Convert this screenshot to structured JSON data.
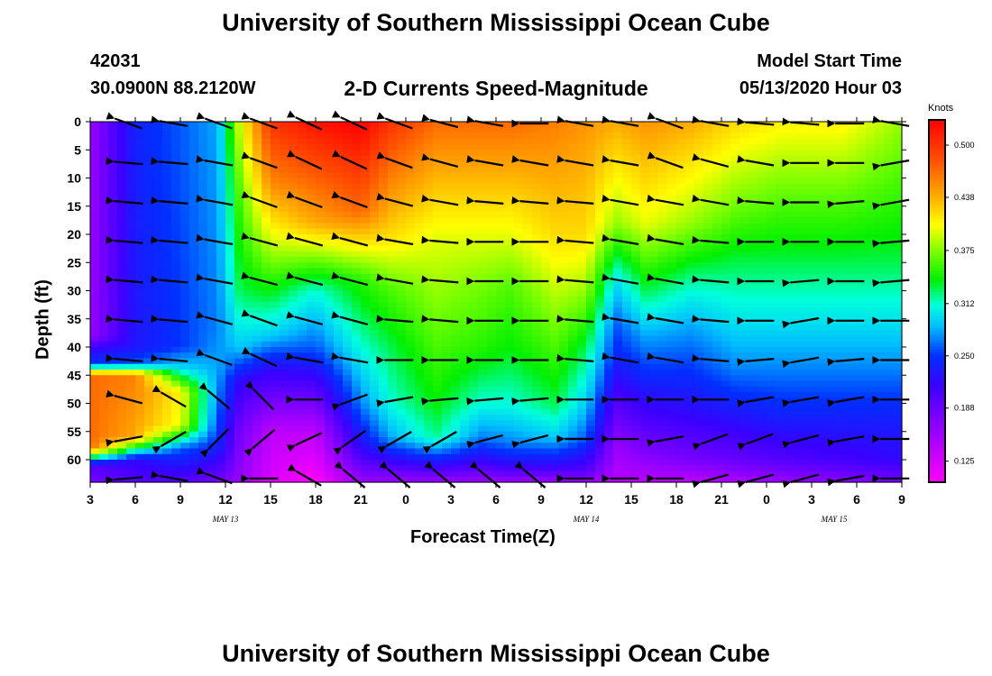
{
  "header": {
    "title_top": "University of Southern Mississippi Ocean Cube",
    "station_id": "42031",
    "station_coords": "30.0900N 88.2120W",
    "chart_title": "2-D Currents Speed-Magnitude",
    "model_start_label": "Model Start Time",
    "model_start_value": "05/13/2020 Hour 03",
    "title_bottom": "University of Southern Mississippi Ocean Cube"
  },
  "chart_data": {
    "type": "heatmap",
    "xlabel": "Forecast Time(Z)",
    "ylabel": "Depth (ft)",
    "x_ticks": [
      "3",
      "6",
      "9",
      "12",
      "15",
      "18",
      "21",
      "0",
      "3",
      "6",
      "9",
      "12",
      "15",
      "18",
      "21",
      "0",
      "3",
      "6",
      "9"
    ],
    "date_labels": [
      {
        "label": "MAY 13",
        "at_tick": 3
      },
      {
        "label": "MAY 14",
        "at_tick": 11
      },
      {
        "label": "MAY 15",
        "at_tick": 16.5
      }
    ],
    "y_ticks": [
      0,
      5,
      10,
      15,
      20,
      25,
      30,
      35,
      40,
      45,
      50,
      55,
      60
    ],
    "ylim": [
      0,
      64
    ],
    "x_range_hours": [
      0,
      54
    ],
    "colorbar": {
      "unit": "Knots",
      "ticks": [
        "0.500",
        "0.438",
        "0.375",
        "0.312",
        "0.250",
        "0.188",
        "0.125"
      ],
      "range": [
        0.1,
        0.53
      ],
      "stops": [
        {
          "v": 0.1,
          "c": "#ff00ff"
        },
        {
          "v": 0.16,
          "c": "#9900ff"
        },
        {
          "v": 0.215,
          "c": "#3a00ff"
        },
        {
          "v": 0.25,
          "c": "#0030ff"
        },
        {
          "v": 0.285,
          "c": "#00bfff"
        },
        {
          "v": 0.31,
          "c": "#00ffdd"
        },
        {
          "v": 0.34,
          "c": "#00f000"
        },
        {
          "v": 0.375,
          "c": "#80ff00"
        },
        {
          "v": 0.405,
          "c": "#ffff00"
        },
        {
          "v": 0.44,
          "c": "#ffaa00"
        },
        {
          "v": 0.48,
          "c": "#ff5500"
        },
        {
          "v": 0.53,
          "c": "#ff0000"
        }
      ]
    },
    "speed_profiles": [
      {
        "t": 0,
        "p": [
          [
            0,
            0.16
          ],
          [
            38,
            0.16
          ],
          [
            40,
            0.21
          ],
          [
            43,
            0.25
          ],
          [
            45,
            0.47
          ],
          [
            58,
            0.47
          ],
          [
            61,
            0.2
          ],
          [
            64,
            0.18
          ]
        ]
      },
      {
        "t": 3,
        "p": [
          [
            0,
            0.24
          ],
          [
            40,
            0.23
          ],
          [
            43,
            0.26
          ],
          [
            45,
            0.46
          ],
          [
            56,
            0.44
          ],
          [
            60,
            0.22
          ],
          [
            64,
            0.2
          ]
        ]
      },
      {
        "t": 6,
        "p": [
          [
            0,
            0.26
          ],
          [
            40,
            0.25
          ],
          [
            44,
            0.3
          ],
          [
            48,
            0.41
          ],
          [
            54,
            0.4
          ],
          [
            58,
            0.26
          ],
          [
            64,
            0.2
          ]
        ]
      },
      {
        "t": 8.5,
        "p": [
          [
            0,
            0.28
          ],
          [
            36,
            0.27
          ],
          [
            44,
            0.28
          ],
          [
            52,
            0.26
          ],
          [
            58,
            0.24
          ],
          [
            64,
            0.18
          ]
        ]
      },
      {
        "t": 10,
        "p": [
          [
            0,
            0.4
          ],
          [
            15,
            0.36
          ],
          [
            30,
            0.33
          ],
          [
            40,
            0.29
          ],
          [
            46,
            0.22
          ],
          [
            55,
            0.18
          ],
          [
            64,
            0.16
          ]
        ]
      },
      {
        "t": 12,
        "p": [
          [
            0,
            0.5
          ],
          [
            10,
            0.46
          ],
          [
            15,
            0.43
          ],
          [
            22,
            0.39
          ],
          [
            30,
            0.34
          ],
          [
            38,
            0.29
          ],
          [
            44,
            0.22
          ],
          [
            55,
            0.14
          ],
          [
            64,
            0.12
          ]
        ]
      },
      {
        "t": 15,
        "p": [
          [
            0,
            0.52
          ],
          [
            18,
            0.44
          ],
          [
            30,
            0.31
          ],
          [
            40,
            0.26
          ],
          [
            46,
            0.21
          ],
          [
            55,
            0.14
          ],
          [
            64,
            0.1
          ]
        ]
      },
      {
        "t": 18,
        "p": [
          [
            0,
            0.53
          ],
          [
            16,
            0.47
          ],
          [
            28,
            0.35
          ],
          [
            40,
            0.31
          ],
          [
            50,
            0.27
          ],
          [
            58,
            0.22
          ],
          [
            64,
            0.16
          ]
        ]
      },
      {
        "t": 20,
        "p": [
          [
            0,
            0.5
          ],
          [
            20,
            0.42
          ],
          [
            30,
            0.36
          ],
          [
            40,
            0.33
          ],
          [
            50,
            0.31
          ],
          [
            56,
            0.28
          ],
          [
            60,
            0.22
          ],
          [
            64,
            0.16
          ]
        ]
      },
      {
        "t": 23,
        "p": [
          [
            0,
            0.47
          ],
          [
            20,
            0.4
          ],
          [
            30,
            0.38
          ],
          [
            40,
            0.36
          ],
          [
            50,
            0.34
          ],
          [
            56,
            0.32
          ],
          [
            60,
            0.24
          ],
          [
            64,
            0.16
          ]
        ]
      },
      {
        "t": 26,
        "p": [
          [
            0,
            0.47
          ],
          [
            20,
            0.4
          ],
          [
            30,
            0.37
          ],
          [
            40,
            0.35
          ],
          [
            50,
            0.31
          ],
          [
            56,
            0.27
          ],
          [
            60,
            0.22
          ],
          [
            64,
            0.16
          ]
        ]
      },
      {
        "t": 28,
        "p": [
          [
            0,
            0.47
          ],
          [
            20,
            0.4
          ],
          [
            30,
            0.36
          ],
          [
            40,
            0.34
          ],
          [
            50,
            0.31
          ],
          [
            57,
            0.27
          ],
          [
            61,
            0.22
          ],
          [
            64,
            0.16
          ]
        ]
      },
      {
        "t": 31,
        "p": [
          [
            0,
            0.46
          ],
          [
            20,
            0.42
          ],
          [
            30,
            0.39
          ],
          [
            40,
            0.36
          ],
          [
            50,
            0.33
          ],
          [
            56,
            0.29
          ],
          [
            61,
            0.22
          ],
          [
            64,
            0.16
          ]
        ]
      },
      {
        "t": 33,
        "p": [
          [
            0,
            0.45
          ],
          [
            20,
            0.42
          ],
          [
            30,
            0.38
          ],
          [
            40,
            0.33
          ],
          [
            50,
            0.29
          ],
          [
            56,
            0.26
          ],
          [
            62,
            0.2
          ],
          [
            64,
            0.16
          ]
        ]
      },
      {
        "t": 35,
        "p": [
          [
            0,
            0.44
          ],
          [
            18,
            0.38
          ],
          [
            28,
            0.3
          ],
          [
            36,
            0.26
          ],
          [
            42,
            0.24
          ],
          [
            50,
            0.2
          ],
          [
            58,
            0.16
          ],
          [
            64,
            0.14
          ]
        ]
      },
      {
        "t": 37,
        "p": [
          [
            0,
            0.45
          ],
          [
            18,
            0.4
          ],
          [
            30,
            0.33
          ],
          [
            38,
            0.28
          ],
          [
            44,
            0.25
          ],
          [
            50,
            0.22
          ],
          [
            58,
            0.18
          ],
          [
            64,
            0.14
          ]
        ]
      },
      {
        "t": 40,
        "p": [
          [
            0,
            0.44
          ],
          [
            18,
            0.38
          ],
          [
            28,
            0.32
          ],
          [
            36,
            0.28
          ],
          [
            44,
            0.25
          ],
          [
            52,
            0.22
          ],
          [
            60,
            0.18
          ],
          [
            64,
            0.14
          ]
        ]
      },
      {
        "t": 43,
        "p": [
          [
            0,
            0.42
          ],
          [
            15,
            0.37
          ],
          [
            25,
            0.33
          ],
          [
            35,
            0.3
          ],
          [
            44,
            0.27
          ],
          [
            52,
            0.23
          ],
          [
            60,
            0.19
          ],
          [
            64,
            0.15
          ]
        ]
      },
      {
        "t": 46,
        "p": [
          [
            0,
            0.41
          ],
          [
            15,
            0.36
          ],
          [
            25,
            0.33
          ],
          [
            35,
            0.3
          ],
          [
            44,
            0.27
          ],
          [
            52,
            0.24
          ],
          [
            60,
            0.2
          ],
          [
            64,
            0.16
          ]
        ]
      },
      {
        "t": 50,
        "p": [
          [
            0,
            0.41
          ],
          [
            15,
            0.36
          ],
          [
            25,
            0.33
          ],
          [
            35,
            0.3
          ],
          [
            44,
            0.27
          ],
          [
            52,
            0.24
          ],
          [
            60,
            0.21
          ],
          [
            64,
            0.17
          ]
        ]
      },
      {
        "t": 54,
        "p": [
          [
            0,
            0.38
          ],
          [
            15,
            0.35
          ],
          [
            25,
            0.33
          ],
          [
            35,
            0.3
          ],
          [
            44,
            0.27
          ],
          [
            52,
            0.24
          ],
          [
            60,
            0.22
          ],
          [
            64,
            0.18
          ]
        ]
      }
    ],
    "vector_times": [
      0.5,
      3.5,
      6.5,
      9.5,
      12.5,
      15.5,
      18.5,
      21.5,
      24.5,
      27.5,
      30.5,
      33.5,
      36.5,
      39.5,
      42.5,
      45.5,
      48.5,
      51.5,
      54.5
    ],
    "vector_depths": [
      0,
      7,
      14,
      21,
      28,
      35,
      42,
      49,
      56,
      63
    ],
    "vector_angles": [
      [
        0,
        20,
        10,
        20,
        20,
        25,
        25,
        20,
        15,
        10,
        0,
        10,
        10,
        20,
        10,
        5,
        5,
        0,
        10
      ],
      [
        0,
        5,
        5,
        10,
        20,
        25,
        25,
        20,
        15,
        10,
        10,
        10,
        10,
        20,
        15,
        10,
        0,
        0,
        -10
      ],
      [
        0,
        5,
        5,
        10,
        20,
        20,
        20,
        15,
        10,
        5,
        5,
        5,
        10,
        10,
        10,
        5,
        0,
        -5,
        -10
      ],
      [
        0,
        5,
        5,
        10,
        15,
        15,
        15,
        10,
        5,
        0,
        0,
        5,
        10,
        10,
        5,
        0,
        0,
        0,
        -5
      ],
      [
        0,
        5,
        5,
        10,
        15,
        15,
        15,
        10,
        5,
        0,
        0,
        5,
        10,
        10,
        5,
        0,
        -5,
        0,
        -5
      ],
      [
        0,
        5,
        5,
        15,
        20,
        15,
        15,
        5,
        5,
        0,
        0,
        5,
        10,
        10,
        5,
        0,
        -10,
        0,
        0
      ],
      [
        0,
        5,
        5,
        20,
        25,
        10,
        10,
        0,
        0,
        0,
        0,
        5,
        10,
        10,
        5,
        -5,
        -10,
        -5,
        0
      ],
      [
        0,
        15,
        30,
        40,
        45,
        0,
        -20,
        -10,
        -5,
        -5,
        -5,
        0,
        0,
        0,
        0,
        -10,
        -10,
        -10,
        0
      ],
      [
        0,
        -10,
        -30,
        -45,
        -40,
        -25,
        -35,
        -30,
        -30,
        -15,
        -15,
        0,
        0,
        -10,
        -20,
        -20,
        -15,
        -10,
        0
      ],
      [
        0,
        -5,
        10,
        20,
        0,
        30,
        40,
        40,
        40,
        40,
        40,
        0,
        0,
        0,
        -15,
        -15,
        -15,
        -10,
        0
      ]
    ],
    "vector_length": 0.6
  }
}
